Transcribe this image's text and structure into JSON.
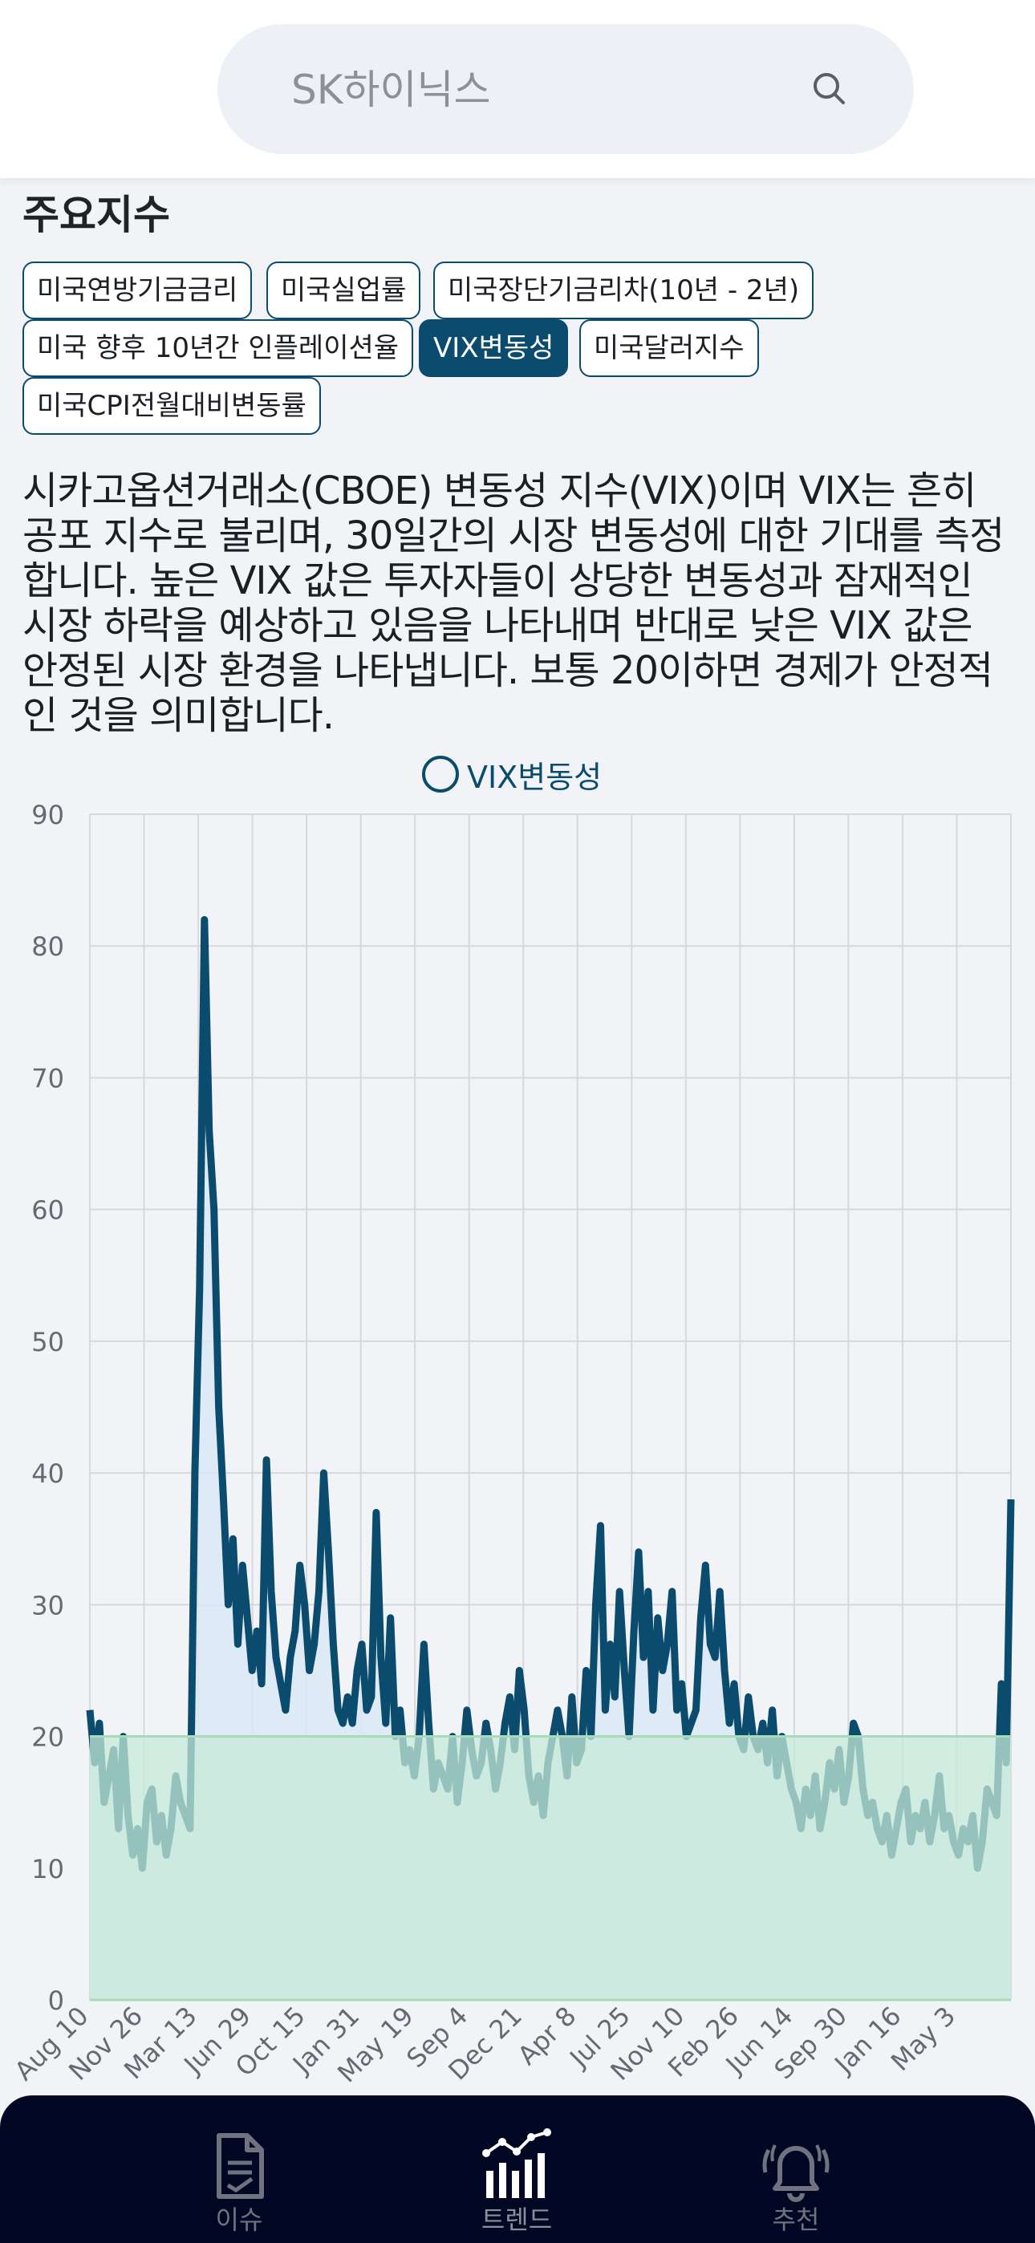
{
  "search": {
    "placeholder": "SK하이닉스"
  },
  "section_title": "주요지수",
  "chips": [
    {
      "label": "미국연방기금금리",
      "active": false
    },
    {
      "label": "미국실업률",
      "active": false
    },
    {
      "label": "미국장단기금리차(10년 - 2년)",
      "active": false
    },
    {
      "label": "미국 향후 10년간 인플레이션율",
      "active": false
    },
    {
      "label": "VIX변동성",
      "active": true
    },
    {
      "label": "미국달러지수",
      "active": false
    },
    {
      "label": "미국CPI전월대비변동률",
      "active": false
    }
  ],
  "description": "시카고옵션거래소(CBOE) 변동성 지수(VIX)이며 VIX는 흔히 공포 지수로 불리며, 30일간의 시장 변동성에 대한 기대를 측정합니다. 높은 VIX 값은 투자자들이 상당한 변동성과 잠재적인 시장 하락을 예상하고 있음을 나타내며 반대로 낮은 VIX 값은 안정된 시장 환경을 나타냅니다. 보통 20이하면 경제가 안정적인 것을 의미합니다.",
  "colors": {
    "accent": "#0b4c6e",
    "fill": "#d9e8f6",
    "threshold_fill": "#c6ead8",
    "threshold_line": "#a6dcb7",
    "nav_bg": "#020824"
  },
  "chart_data": {
    "type": "line",
    "title": "",
    "xlabel": "",
    "ylabel": "",
    "legend": {
      "label": "VIX변동성",
      "placement": "top-center"
    },
    "ylim": [
      0,
      90
    ],
    "yticks": [
      0,
      10,
      20,
      30,
      40,
      50,
      60,
      70,
      80,
      90
    ],
    "xtick_labels": [
      "Aug 10",
      "Nov 26",
      "Mar 13",
      "Jun 29",
      "Oct 15",
      "Jan 31",
      "May 19",
      "Sep 4",
      "Dec 21",
      "Apr 8",
      "Jul 25",
      "Nov 10",
      "Feb 26",
      "Jun 14",
      "Sep 30",
      "Jan 16",
      "May 3"
    ],
    "threshold": {
      "value": 20,
      "label": ""
    },
    "series": [
      {
        "name": "VIX변동성",
        "values": [
          22,
          18,
          21,
          15,
          17,
          19,
          13,
          20,
          14,
          11,
          13,
          10,
          15,
          16,
          12,
          14,
          11,
          13,
          17,
          15,
          14,
          13,
          40,
          54,
          82,
          66,
          60,
          45,
          38,
          30,
          35,
          27,
          33,
          29,
          25,
          28,
          24,
          41,
          31,
          26,
          24,
          22,
          26,
          28,
          33,
          30,
          25,
          27,
          31,
          40,
          34,
          27,
          22,
          21,
          23,
          21,
          25,
          27,
          22,
          23,
          37,
          26,
          21,
          29,
          20,
          22,
          18,
          19,
          17,
          20,
          27,
          21,
          16,
          18,
          17,
          16,
          20,
          15,
          18,
          22,
          19,
          17,
          18,
          21,
          19,
          16,
          18,
          21,
          23,
          19,
          25,
          22,
          17,
          15,
          17,
          14,
          18,
          20,
          22,
          20,
          17,
          23,
          18,
          19,
          25,
          20,
          30,
          36,
          22,
          27,
          23,
          31,
          25,
          20,
          28,
          34,
          26,
          31,
          22,
          29,
          25,
          27,
          31,
          22,
          24,
          20,
          21,
          22,
          29,
          33,
          27,
          26,
          31,
          25,
          21,
          24,
          20,
          19,
          23,
          20,
          19,
          21,
          18,
          22,
          17,
          20,
          18,
          16,
          15,
          13,
          16,
          14,
          17,
          13,
          15,
          18,
          16,
          19,
          15,
          17,
          21,
          20,
          16,
          14,
          15,
          13,
          12,
          14,
          11,
          13,
          15,
          16,
          12,
          14,
          13,
          15,
          12,
          14,
          17,
          13,
          14,
          12,
          11,
          13,
          12,
          14,
          10,
          12,
          16,
          15,
          14,
          24,
          18,
          38
        ]
      }
    ]
  },
  "nav": [
    {
      "label": "이슈",
      "icon": "document-icon",
      "active": false
    },
    {
      "label": "트렌드",
      "icon": "trend-chart-icon",
      "active": true
    },
    {
      "label": "추천",
      "icon": "bell-icon",
      "active": false
    }
  ]
}
